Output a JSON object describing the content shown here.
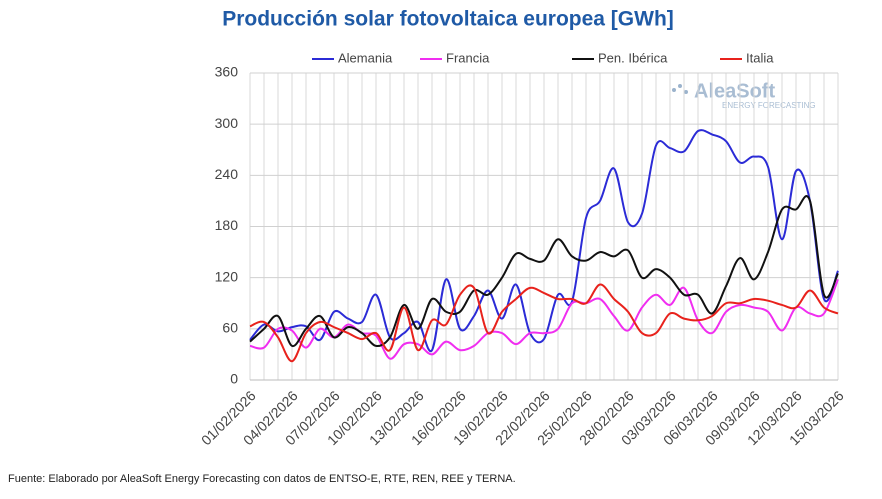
{
  "chart_data": {
    "type": "line",
    "title": "Producción solar fotovoltaica europea [GWh]",
    "source": "Fuente: Elaborado por AleaSoft Energy Forecasting con datos de ENTSO-E, RTE, REN, REE y TERNA.",
    "logo": "AleaSoft",
    "logo_subtitle": "ENERGY FORECASTING",
    "categories": [
      "01/02/2026",
      "02/02/2026",
      "03/02/2026",
      "04/02/2026",
      "05/02/2026",
      "06/02/2026",
      "07/02/2026",
      "08/02/2026",
      "09/02/2026",
      "10/02/2026",
      "11/02/2026",
      "12/02/2026",
      "13/02/2026",
      "14/02/2026",
      "15/02/2026",
      "16/02/2026",
      "17/02/2026",
      "18/02/2026",
      "19/02/2026",
      "20/02/2026",
      "21/02/2026",
      "22/02/2026",
      "23/02/2026",
      "24/02/2026",
      "25/02/2026",
      "26/02/2026",
      "27/02/2026",
      "28/02/2026",
      "01/03/2026",
      "02/03/2026",
      "03/03/2026",
      "04/03/2026",
      "05/03/2026",
      "06/03/2026",
      "07/03/2026",
      "08/03/2026",
      "09/03/2026",
      "10/03/2026",
      "11/03/2026",
      "12/03/2026",
      "13/03/2026",
      "14/03/2026",
      "15/03/2026"
    ],
    "series": [
      {
        "name": "Alemania",
        "color": "#2b2bd6",
        "values": [
          47,
          65,
          57,
          62,
          63,
          47,
          80,
          72,
          68,
          100,
          50,
          55,
          68,
          35,
          118,
          60,
          75,
          105,
          72,
          112,
          55,
          48,
          100,
          92,
          190,
          210,
          248,
          185,
          195,
          275,
          272,
          268,
          292,
          288,
          280,
          255,
          262,
          250,
          165,
          245,
          210,
          95,
          128
        ]
      },
      {
        "name": "Francia",
        "color": "#f02ef0",
        "values": [
          40,
          38,
          60,
          58,
          38,
          60,
          50,
          65,
          55,
          52,
          25,
          42,
          42,
          30,
          45,
          35,
          40,
          55,
          55,
          42,
          55,
          55,
          60,
          90,
          90,
          95,
          75,
          58,
          85,
          100,
          88,
          108,
          70,
          55,
          80,
          88,
          85,
          80,
          58,
          85,
          78,
          78,
          118
        ]
      },
      {
        "name": "Pen. Ibérica",
        "color": "#111111",
        "values": [
          45,
          60,
          75,
          40,
          60,
          75,
          50,
          62,
          55,
          40,
          50,
          88,
          60,
          95,
          80,
          80,
          105,
          100,
          120,
          148,
          142,
          140,
          165,
          145,
          140,
          150,
          145,
          152,
          120,
          130,
          120,
          100,
          100,
          78,
          110,
          143,
          118,
          150,
          200,
          200,
          210,
          100,
          125
        ]
      },
      {
        "name": "Italia",
        "color": "#e8221c",
        "values": [
          63,
          68,
          50,
          22,
          55,
          68,
          62,
          55,
          48,
          55,
          35,
          85,
          35,
          70,
          65,
          100,
          108,
          55,
          80,
          95,
          108,
          102,
          95,
          95,
          90,
          112,
          95,
          80,
          55,
          55,
          78,
          72,
          70,
          75,
          90,
          90,
          95,
          93,
          88,
          85,
          105,
          85,
          78
        ]
      }
    ],
    "ylim": [
      0,
      360
    ],
    "yticks": [
      0,
      60,
      120,
      180,
      240,
      300,
      360
    ],
    "xtick_step": 3,
    "grid": true
  }
}
